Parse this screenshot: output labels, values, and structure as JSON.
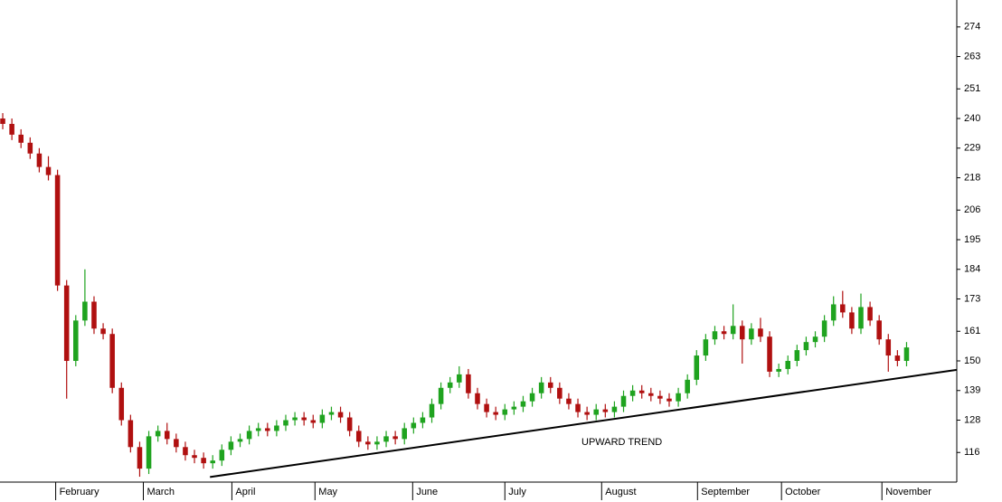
{
  "chart_data": {
    "type": "candlestick",
    "x": [
      0,
      1,
      2,
      3,
      4,
      5,
      6,
      7,
      8,
      9,
      10,
      11,
      12,
      13,
      14,
      15,
      16,
      17,
      18,
      19,
      20,
      21,
      22,
      23,
      24,
      25,
      26,
      27,
      28,
      29,
      30,
      31,
      32,
      33,
      34,
      35,
      36,
      37,
      38,
      39,
      40,
      41,
      42,
      43,
      44,
      45,
      46,
      47,
      48,
      49,
      50,
      51,
      52,
      53,
      54,
      55,
      56,
      57,
      58,
      59,
      60,
      61,
      62,
      63,
      64,
      65,
      66,
      67,
      68,
      69,
      70,
      71,
      72,
      73,
      74,
      75,
      76,
      77,
      78,
      79,
      80,
      81,
      82,
      83,
      84,
      85,
      86,
      87,
      88,
      89,
      90,
      91,
      92,
      93,
      94,
      95,
      96,
      97,
      98,
      99
    ],
    "open": [
      240,
      238,
      234,
      231,
      227,
      222,
      219,
      178,
      150,
      165,
      172,
      162,
      160,
      140,
      128,
      118,
      110,
      122,
      124,
      121,
      118,
      115,
      114,
      112,
      113,
      117,
      120,
      121,
      124,
      125,
      124,
      126,
      128,
      129,
      128,
      127,
      130,
      131,
      129,
      124,
      120,
      119,
      120,
      122,
      121,
      125,
      127,
      129,
      134,
      140,
      142,
      145,
      138,
      134,
      131,
      130,
      132,
      133,
      135,
      138,
      142,
      140,
      136,
      134,
      131,
      130,
      132,
      131,
      133,
      137,
      139,
      138,
      137,
      136,
      135,
      138,
      143,
      152,
      158,
      161,
      160,
      163,
      158,
      162,
      159,
      146,
      147,
      150,
      154,
      157,
      159,
      165,
      171,
      168,
      162,
      170,
      165,
      158,
      152,
      150
    ],
    "high": [
      242,
      240,
      236,
      233,
      229,
      226,
      221,
      180,
      167,
      184,
      174,
      164,
      162,
      142,
      130,
      120,
      124,
      126,
      127,
      123,
      120,
      117,
      116,
      115,
      119,
      122,
      123,
      126,
      127,
      127,
      128,
      130,
      131,
      131,
      130,
      132,
      133,
      133,
      131,
      126,
      122,
      122,
      124,
      124,
      127,
      129,
      131,
      136,
      142,
      144,
      148,
      147,
      140,
      136,
      133,
      134,
      135,
      137,
      140,
      144,
      144,
      142,
      138,
      136,
      133,
      134,
      134,
      135,
      139,
      141,
      141,
      140,
      139,
      138,
      140,
      145,
      154,
      160,
      163,
      163,
      171,
      165,
      164,
      166,
      161,
      149,
      152,
      156,
      159,
      161,
      167,
      174,
      176,
      170,
      175,
      172,
      167,
      160,
      154,
      157
    ],
    "low": [
      236,
      232,
      229,
      225,
      220,
      217,
      176,
      136,
      148,
      163,
      160,
      158,
      138,
      126,
      116,
      107,
      108,
      120,
      119,
      116,
      113,
      112,
      110,
      110,
      111,
      115,
      118,
      119,
      122,
      122,
      122,
      124,
      126,
      126,
      125,
      125,
      128,
      127,
      122,
      118,
      117,
      117,
      118,
      119,
      119,
      123,
      125,
      127,
      132,
      138,
      140,
      136,
      132,
      129,
      128,
      128,
      130,
      131,
      133,
      136,
      138,
      134,
      132,
      129,
      128,
      128,
      129,
      129,
      131,
      135,
      136,
      135,
      134,
      133,
      133,
      136,
      141,
      150,
      156,
      158,
      158,
      149,
      156,
      157,
      144,
      144,
      145,
      148,
      152,
      155,
      157,
      163,
      166,
      160,
      160,
      163,
      156,
      146,
      148,
      148
    ],
    "close": [
      238,
      234,
      231,
      227,
      222,
      219,
      178,
      150,
      165,
      172,
      162,
      160,
      140,
      128,
      118,
      110,
      122,
      124,
      121,
      118,
      115,
      114,
      112,
      113,
      117,
      120,
      121,
      124,
      125,
      124,
      126,
      128,
      129,
      128,
      127,
      130,
      131,
      129,
      124,
      120,
      119,
      120,
      122,
      121,
      125,
      127,
      129,
      134,
      140,
      142,
      145,
      138,
      134,
      131,
      130,
      132,
      133,
      135,
      138,
      142,
      140,
      136,
      134,
      131,
      130,
      132,
      131,
      133,
      137,
      139,
      138,
      137,
      136,
      135,
      138,
      143,
      152,
      158,
      161,
      160,
      163,
      158,
      162,
      159,
      146,
      147,
      150,
      154,
      157,
      159,
      165,
      171,
      168,
      162,
      170,
      165,
      158,
      152,
      150,
      155
    ],
    "up_color": "#1fa31f",
    "down_color": "#b01010",
    "xlim": [
      -0.3,
      104.5
    ],
    "ylim": [
      105,
      284
    ],
    "xticks": [
      {
        "value": 5.8,
        "label": "February"
      },
      {
        "value": 15.4,
        "label": "March"
      },
      {
        "value": 25.1,
        "label": "April"
      },
      {
        "value": 34.2,
        "label": "May"
      },
      {
        "value": 44.9,
        "label": "June"
      },
      {
        "value": 55,
        "label": "July"
      },
      {
        "value": 65.6,
        "label": "August"
      },
      {
        "value": 76.1,
        "label": "September"
      },
      {
        "value": 85.3,
        "label": "October"
      },
      {
        "value": 96.3,
        "label": "November"
      }
    ],
    "yticks": [
      116,
      128,
      139,
      150,
      161,
      173,
      184,
      195,
      206,
      218,
      229,
      240,
      251,
      263,
      274
    ],
    "trendline": {
      "x": [
        22.7,
        104.5
      ],
      "y": [
        106.9,
        146.7
      ],
      "color": "#000000",
      "label": "UPWARD TREND",
      "label_color": "#1a1acc"
    }
  }
}
